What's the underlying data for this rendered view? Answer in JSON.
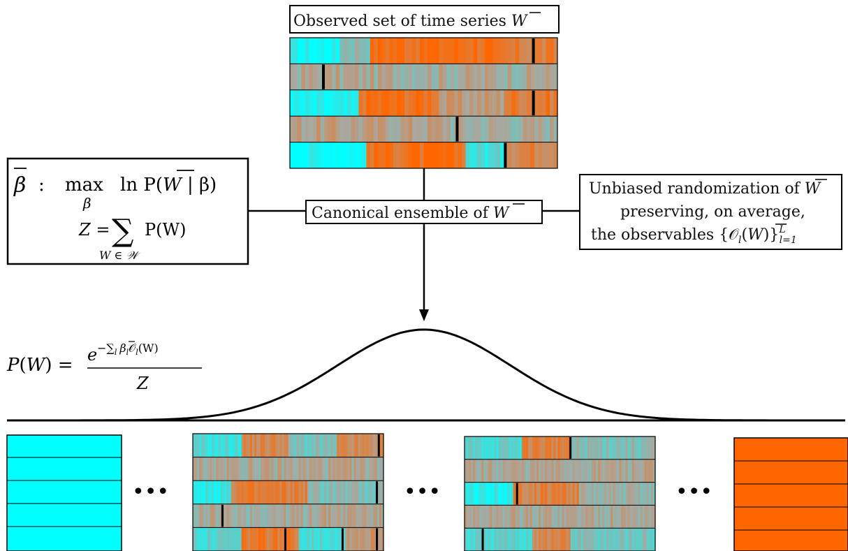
{
  "observed": {
    "label": "Observed set of time series",
    "symbol": "W"
  },
  "canonical": {
    "label": "Canonical ensemble of",
    "symbol": "W"
  },
  "left_box": {
    "line1_symbol": "β",
    "line1_op": ":",
    "line1_max": "max",
    "line1_max_sub": "β",
    "line1_expr_pre": "ln P(",
    "line1_expr_W": "W",
    "line1_expr_post": " | β)",
    "line2_lhs": "Z = ",
    "line2_sum": "∑",
    "line2_sum_sub": "W ∈ 𝒲",
    "line2_rhs": "P(W)"
  },
  "right_box": {
    "line1": "Unbiased randomization of",
    "line1_symbol": "W",
    "line2": "preserving, on average,",
    "line3_pre": "the observables {𝒪",
    "line3_sub": "l",
    "line3_mid": "(",
    "line3_W": "W",
    "line3_post": ")}",
    "line3_sup": "L",
    "line3_sub2": "l=1"
  },
  "formula": {
    "lhs": "P(W) = ",
    "numerator_base": "e",
    "numerator_exp": "−∑",
    "numerator_exp_sub": "l",
    "numerator_exp_beta": "β",
    "numerator_exp_beta_sub": "l",
    "numerator_exp_rest": "𝒪",
    "numerator_exp_rest_sub": "l",
    "numerator_exp_arg": "(W)",
    "denominator": "Z"
  },
  "ellipsis": [
    "•••",
    "•••",
    "•••"
  ],
  "colors": {
    "cyan": "#00ffff",
    "orange": "#ff6600",
    "gray": "#a8a8a0"
  }
}
